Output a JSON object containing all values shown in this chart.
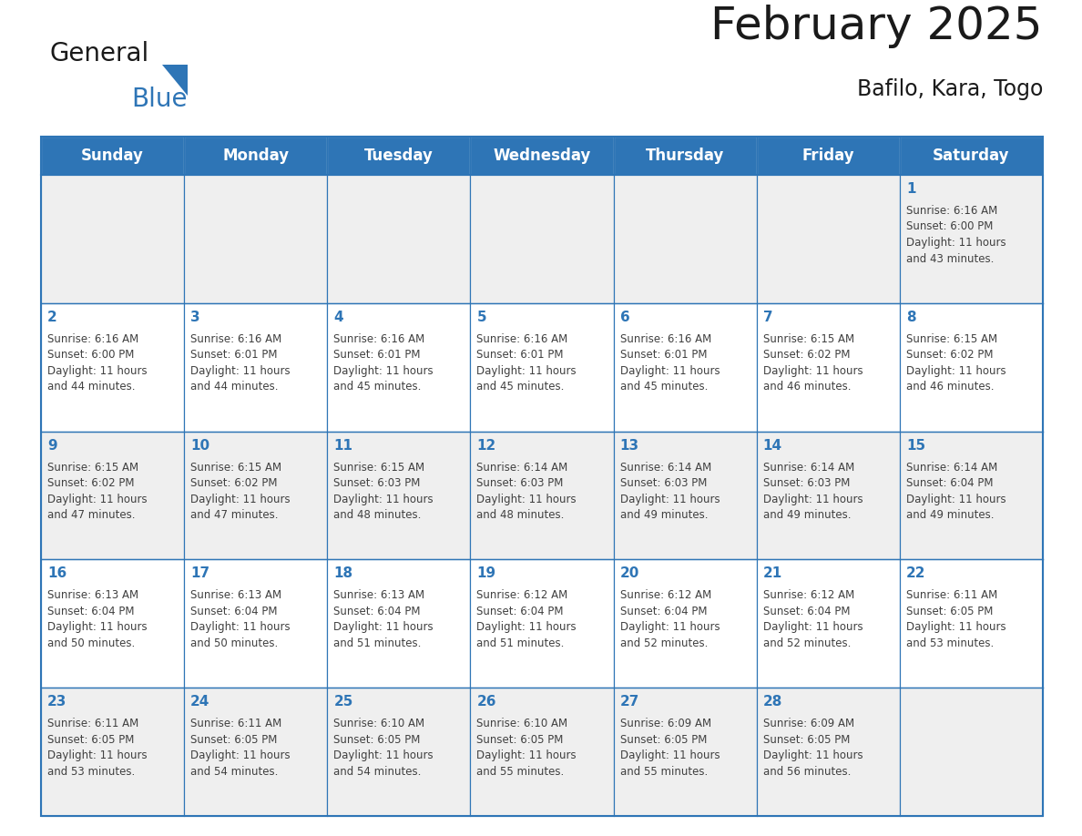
{
  "title": "February 2025",
  "subtitle": "Bafilo, Kara, Togo",
  "header_bg_color": "#2E75B6",
  "header_text_color": "#FFFFFF",
  "cell_bg_color": "#EFEFEF",
  "cell_bg_color2": "#FFFFFF",
  "day_number_color": "#2E75B6",
  "text_color": "#404040",
  "border_color": "#2E75B6",
  "logo_black": "#1a1a1a",
  "logo_blue": "#2E75B6",
  "days_of_week": [
    "Sunday",
    "Monday",
    "Tuesday",
    "Wednesday",
    "Thursday",
    "Friday",
    "Saturday"
  ],
  "weeks": [
    [
      {
        "day": 0,
        "text": ""
      },
      {
        "day": 0,
        "text": ""
      },
      {
        "day": 0,
        "text": ""
      },
      {
        "day": 0,
        "text": ""
      },
      {
        "day": 0,
        "text": ""
      },
      {
        "day": 0,
        "text": ""
      },
      {
        "day": 1,
        "text": "Sunrise: 6:16 AM\nSunset: 6:00 PM\nDaylight: 11 hours\nand 43 minutes."
      }
    ],
    [
      {
        "day": 2,
        "text": "Sunrise: 6:16 AM\nSunset: 6:00 PM\nDaylight: 11 hours\nand 44 minutes."
      },
      {
        "day": 3,
        "text": "Sunrise: 6:16 AM\nSunset: 6:01 PM\nDaylight: 11 hours\nand 44 minutes."
      },
      {
        "day": 4,
        "text": "Sunrise: 6:16 AM\nSunset: 6:01 PM\nDaylight: 11 hours\nand 45 minutes."
      },
      {
        "day": 5,
        "text": "Sunrise: 6:16 AM\nSunset: 6:01 PM\nDaylight: 11 hours\nand 45 minutes."
      },
      {
        "day": 6,
        "text": "Sunrise: 6:16 AM\nSunset: 6:01 PM\nDaylight: 11 hours\nand 45 minutes."
      },
      {
        "day": 7,
        "text": "Sunrise: 6:15 AM\nSunset: 6:02 PM\nDaylight: 11 hours\nand 46 minutes."
      },
      {
        "day": 8,
        "text": "Sunrise: 6:15 AM\nSunset: 6:02 PM\nDaylight: 11 hours\nand 46 minutes."
      }
    ],
    [
      {
        "day": 9,
        "text": "Sunrise: 6:15 AM\nSunset: 6:02 PM\nDaylight: 11 hours\nand 47 minutes."
      },
      {
        "day": 10,
        "text": "Sunrise: 6:15 AM\nSunset: 6:02 PM\nDaylight: 11 hours\nand 47 minutes."
      },
      {
        "day": 11,
        "text": "Sunrise: 6:15 AM\nSunset: 6:03 PM\nDaylight: 11 hours\nand 48 minutes."
      },
      {
        "day": 12,
        "text": "Sunrise: 6:14 AM\nSunset: 6:03 PM\nDaylight: 11 hours\nand 48 minutes."
      },
      {
        "day": 13,
        "text": "Sunrise: 6:14 AM\nSunset: 6:03 PM\nDaylight: 11 hours\nand 49 minutes."
      },
      {
        "day": 14,
        "text": "Sunrise: 6:14 AM\nSunset: 6:03 PM\nDaylight: 11 hours\nand 49 minutes."
      },
      {
        "day": 15,
        "text": "Sunrise: 6:14 AM\nSunset: 6:04 PM\nDaylight: 11 hours\nand 49 minutes."
      }
    ],
    [
      {
        "day": 16,
        "text": "Sunrise: 6:13 AM\nSunset: 6:04 PM\nDaylight: 11 hours\nand 50 minutes."
      },
      {
        "day": 17,
        "text": "Sunrise: 6:13 AM\nSunset: 6:04 PM\nDaylight: 11 hours\nand 50 minutes."
      },
      {
        "day": 18,
        "text": "Sunrise: 6:13 AM\nSunset: 6:04 PM\nDaylight: 11 hours\nand 51 minutes."
      },
      {
        "day": 19,
        "text": "Sunrise: 6:12 AM\nSunset: 6:04 PM\nDaylight: 11 hours\nand 51 minutes."
      },
      {
        "day": 20,
        "text": "Sunrise: 6:12 AM\nSunset: 6:04 PM\nDaylight: 11 hours\nand 52 minutes."
      },
      {
        "day": 21,
        "text": "Sunrise: 6:12 AM\nSunset: 6:04 PM\nDaylight: 11 hours\nand 52 minutes."
      },
      {
        "day": 22,
        "text": "Sunrise: 6:11 AM\nSunset: 6:05 PM\nDaylight: 11 hours\nand 53 minutes."
      }
    ],
    [
      {
        "day": 23,
        "text": "Sunrise: 6:11 AM\nSunset: 6:05 PM\nDaylight: 11 hours\nand 53 minutes."
      },
      {
        "day": 24,
        "text": "Sunrise: 6:11 AM\nSunset: 6:05 PM\nDaylight: 11 hours\nand 54 minutes."
      },
      {
        "day": 25,
        "text": "Sunrise: 6:10 AM\nSunset: 6:05 PM\nDaylight: 11 hours\nand 54 minutes."
      },
      {
        "day": 26,
        "text": "Sunrise: 6:10 AM\nSunset: 6:05 PM\nDaylight: 11 hours\nand 55 minutes."
      },
      {
        "day": 27,
        "text": "Sunrise: 6:09 AM\nSunset: 6:05 PM\nDaylight: 11 hours\nand 55 minutes."
      },
      {
        "day": 28,
        "text": "Sunrise: 6:09 AM\nSunset: 6:05 PM\nDaylight: 11 hours\nand 56 minutes."
      },
      {
        "day": 0,
        "text": ""
      }
    ]
  ]
}
